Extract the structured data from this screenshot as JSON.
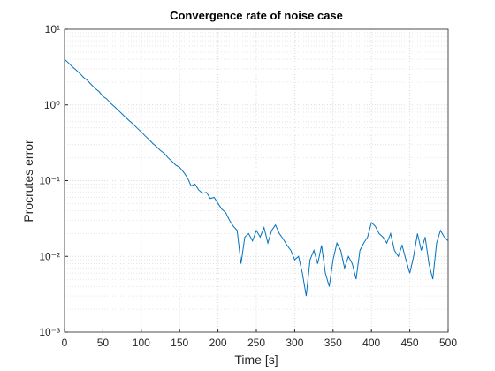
{
  "chart_data": {
    "type": "line",
    "title": "Convergence rate of noise case",
    "xlabel": "Time [s]",
    "ylabel": "Procrutes error",
    "x": [
      0,
      5,
      10,
      15,
      20,
      25,
      30,
      35,
      40,
      45,
      50,
      55,
      60,
      65,
      70,
      75,
      80,
      85,
      90,
      95,
      100,
      105,
      110,
      115,
      120,
      125,
      130,
      135,
      140,
      145,
      150,
      155,
      160,
      165,
      170,
      175,
      180,
      185,
      190,
      195,
      200,
      205,
      210,
      215,
      220,
      225,
      230,
      235,
      240,
      245,
      250,
      255,
      260,
      265,
      270,
      275,
      280,
      285,
      290,
      295,
      300,
      305,
      310,
      315,
      320,
      325,
      330,
      335,
      340,
      345,
      350,
      355,
      360,
      365,
      370,
      375,
      380,
      385,
      390,
      395,
      400,
      405,
      410,
      415,
      420,
      425,
      430,
      435,
      440,
      445,
      450,
      455,
      460,
      465,
      470,
      475,
      480,
      485,
      490,
      495,
      500
    ],
    "series": [
      {
        "name": "Procrutes error",
        "color": "#0072bd",
        "values": [
          4.0,
          3.6,
          3.2,
          2.9,
          2.6,
          2.3,
          2.1,
          1.85,
          1.65,
          1.5,
          1.3,
          1.2,
          1.05,
          0.95,
          0.85,
          0.76,
          0.68,
          0.61,
          0.55,
          0.49,
          0.44,
          0.39,
          0.35,
          0.31,
          0.28,
          0.25,
          0.23,
          0.2,
          0.18,
          0.16,
          0.15,
          0.13,
          0.11,
          0.085,
          0.09,
          0.075,
          0.068,
          0.07,
          0.058,
          0.06,
          0.05,
          0.042,
          0.038,
          0.03,
          0.025,
          0.022,
          0.008,
          0.018,
          0.02,
          0.016,
          0.022,
          0.018,
          0.024,
          0.015,
          0.022,
          0.026,
          0.02,
          0.017,
          0.014,
          0.012,
          0.009,
          0.01,
          0.006,
          0.003,
          0.009,
          0.012,
          0.008,
          0.014,
          0.006,
          0.004,
          0.009,
          0.015,
          0.012,
          0.007,
          0.01,
          0.008,
          0.005,
          0.012,
          0.015,
          0.018,
          0.028,
          0.025,
          0.02,
          0.018,
          0.015,
          0.02,
          0.012,
          0.01,
          0.014,
          0.009,
          0.006,
          0.01,
          0.02,
          0.012,
          0.018,
          0.008,
          0.005,
          0.015,
          0.022,
          0.018,
          0.016
        ]
      }
    ],
    "xlim": [
      0,
      500
    ],
    "xticks": [
      0,
      50,
      100,
      150,
      200,
      250,
      300,
      350,
      400,
      450,
      500
    ],
    "ylim": [
      0.001,
      10
    ],
    "yscale": "log",
    "yticks": [
      {
        "value": 0.001,
        "label": "10⁻³"
      },
      {
        "value": 0.01,
        "label": "10⁻²"
      },
      {
        "value": 0.1,
        "label": "10⁻¹"
      },
      {
        "value": 1,
        "label": "10⁰"
      },
      {
        "value": 10,
        "label": "10¹"
      }
    ],
    "grid": true
  }
}
